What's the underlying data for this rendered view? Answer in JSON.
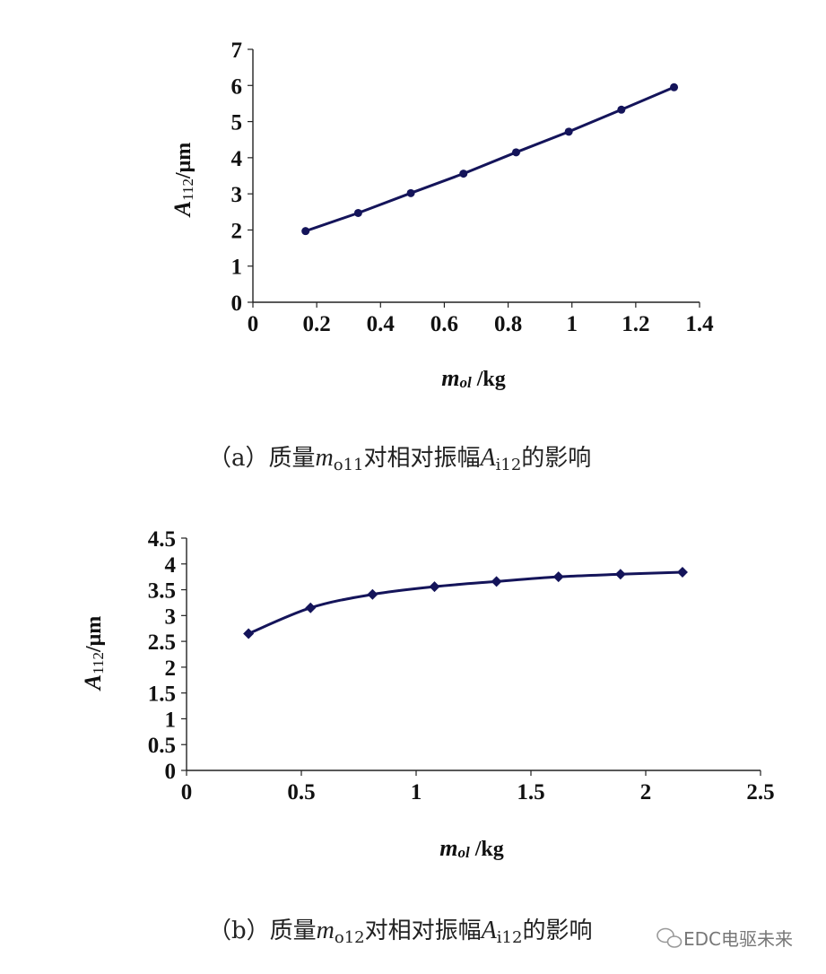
{
  "chart_data": [
    {
      "type": "line",
      "panel": "a",
      "x": [
        0.165,
        0.33,
        0.495,
        0.66,
        0.825,
        0.99,
        1.155,
        1.32
      ],
      "series": [
        {
          "values": [
            1.97,
            2.47,
            3.02,
            3.56,
            4.15,
            4.72,
            5.33,
            5.95
          ]
        }
      ],
      "xlim": [
        0,
        1.4
      ],
      "ylim": [
        0,
        7
      ],
      "xticks": [
        "0",
        "0.2",
        "0.4",
        "0.6",
        "0.8",
        "1",
        "1.2",
        "1.4"
      ],
      "yticks": [
        "0",
        "1",
        "2",
        "3",
        "4",
        "5",
        "6",
        "7"
      ],
      "ylabel": {
        "main": "A",
        "sub": "112",
        "unit": "/μm"
      },
      "xlabel": {
        "main": "m",
        "sub": "ol",
        "unit": " /kg"
      },
      "caption": {
        "prefix": "（a）质量",
        "var": "m",
        "var_sub": "o11",
        "middle": "对相对振幅",
        "var2": "A",
        "var2_sub": "i12",
        "suffix": "的影响"
      },
      "marker": "circle",
      "color": "#14145a",
      "grid": false
    },
    {
      "type": "line",
      "panel": "b",
      "x": [
        0.27,
        0.54,
        0.81,
        1.08,
        1.35,
        1.62,
        1.89,
        2.16
      ],
      "series": [
        {
          "values": [
            2.65,
            3.15,
            3.41,
            3.56,
            3.66,
            3.75,
            3.8,
            3.84
          ]
        }
      ],
      "xlim": [
        0,
        2.5
      ],
      "ylim": [
        0,
        4.5
      ],
      "xticks": [
        "0",
        "0.5",
        "1",
        "1.5",
        "2",
        "2.5"
      ],
      "yticks": [
        "0",
        "0.5",
        "1",
        "1.5",
        "2",
        "2.5",
        "3",
        "3.5",
        "4",
        "4.5"
      ],
      "ylabel": {
        "main": "A",
        "sub": "112",
        "unit": "/μm"
      },
      "xlabel": {
        "main": "m",
        "sub": "ol",
        "unit": " /kg"
      },
      "caption": {
        "prefix": "（b）质量",
        "var": "m",
        "var_sub": "o12",
        "middle": "对相对振幅",
        "var2": "A",
        "var2_sub": "i12",
        "suffix": "的影响"
      },
      "marker": "diamond",
      "color": "#14145a",
      "grid": false
    }
  ],
  "watermark": "EDC电驱未来"
}
